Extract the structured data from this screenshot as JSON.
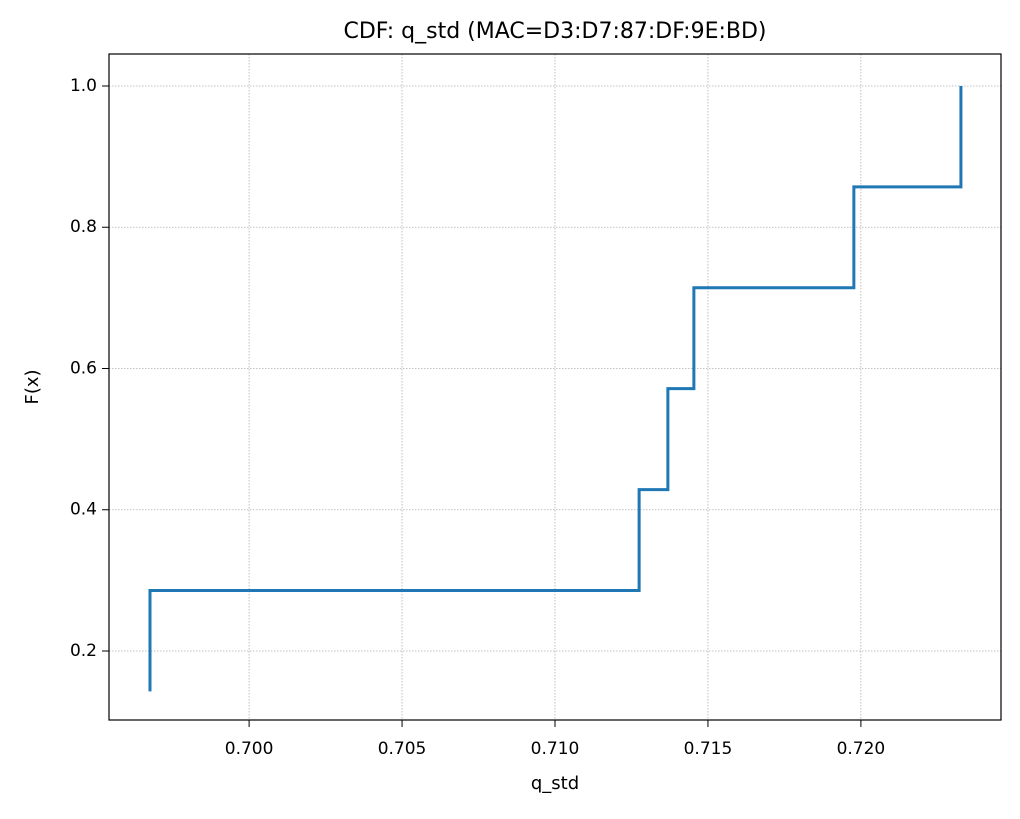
{
  "chart_data": {
    "type": "line",
    "drawstyle": "steps-post",
    "title": "CDF: q_std (MAC=D3:D7:87:DF:9E:BD)",
    "x_label": "q_std",
    "y_label": "F(x)",
    "grid": true,
    "x": [
      0.69676,
      0.69676,
      0.71275,
      0.71369,
      0.71454,
      0.71977,
      0.72327
    ],
    "series": [
      {
        "color": "#1f77b4",
        "values": [
          0.142857,
          0.285714,
          0.428571,
          0.571429,
          0.714286,
          0.857143,
          1.0
        ]
      }
    ],
    "xlim": [
      0.69542,
      0.72458
    ],
    "ylim": [
      0.1023,
      1.0453
    ],
    "xticks": [
      {
        "value": 0.7,
        "label": "0.700"
      },
      {
        "value": 0.705,
        "label": "0.705"
      },
      {
        "value": 0.71,
        "label": "0.710"
      },
      {
        "value": 0.715,
        "label": "0.715"
      },
      {
        "value": 0.72,
        "label": "0.720"
      }
    ],
    "yticks": [
      0.2,
      0.4,
      0.6,
      0.8,
      {
        "value": 1.0,
        "label": "1.0"
      }
    ]
  }
}
